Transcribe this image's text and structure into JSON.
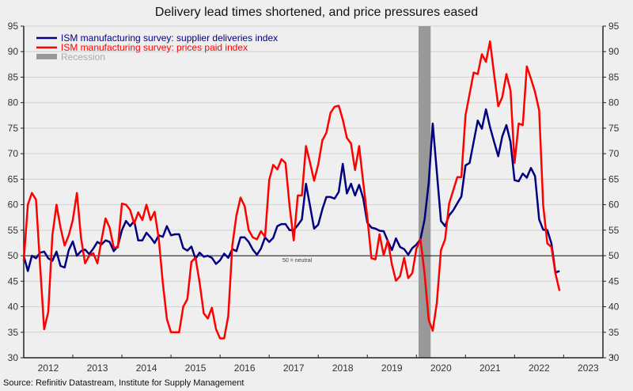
{
  "chart_data": {
    "type": "line",
    "title": "Delivery lead times shortened, and price pressures eased",
    "source": "Source: Refinitiv Datastream, Institute for Supply Management",
    "x_start": "2012-01",
    "frequency": "monthly",
    "xlim": [
      2012,
      2023.8
    ],
    "ylim": [
      30,
      95
    ],
    "y_ticks": [
      "30",
      "35",
      "40",
      "45",
      "50",
      "55",
      "60",
      "65",
      "70",
      "75",
      "80",
      "85",
      "90",
      "95"
    ],
    "x_tick_labels": [
      "2012",
      "2013",
      "2014",
      "2015",
      "2016",
      "2017",
      "2018",
      "2019",
      "2020",
      "2021",
      "2022",
      "2023"
    ],
    "grid": true,
    "dual_axis_same_scale": true,
    "legend_position": "top-left",
    "reference_line": {
      "value": 50,
      "label": "50 = neutral"
    },
    "recession": {
      "label": "Recession",
      "start": "2020-02",
      "end": "2020-04",
      "color": "#999999"
    },
    "series": [
      {
        "name": "ISM manufacturing survey: supplier deliveries index",
        "color": "#000080",
        "values": [
          50,
          47,
          50,
          49.5,
          50.6,
          50.8,
          49.5,
          49,
          50.8,
          48,
          47.7,
          51.1,
          52.8,
          50,
          50.9,
          51.2,
          50.3,
          51.4,
          52.7,
          52.2,
          53,
          52.7,
          50.9,
          51.9,
          55,
          56.8,
          55.8,
          56.8,
          53,
          53,
          54.5,
          53.6,
          52.5,
          54,
          53.7,
          55.8,
          54,
          54.2,
          54.2,
          51.5,
          51,
          51.8,
          49.4,
          50.6,
          49.8,
          50,
          49.6,
          48.4,
          49.1,
          50.4,
          49.6,
          51.3,
          50.9,
          53.6,
          53.6,
          52.7,
          51.2,
          50.2,
          51.4,
          53.6,
          52.7,
          53.5,
          55.8,
          56.2,
          56.2,
          55,
          55,
          56,
          57.1,
          64.1,
          59.7,
          55.3,
          56.1,
          59.1,
          61.5,
          61.5,
          61.2,
          62.5,
          68,
          62.2,
          64.1,
          61.8,
          63.9,
          61.2,
          56.5,
          55.5,
          55.3,
          54.9,
          54.8,
          52.9,
          51.1,
          53.4,
          51.7,
          51.3,
          50.2,
          51.5,
          52.2,
          53.2,
          57.1,
          64.3,
          75.9,
          66.4,
          56.8,
          55.8,
          57.9,
          58.9,
          60.3,
          61.6,
          67.7,
          68.2,
          72.3,
          76.5,
          74.9,
          78.7,
          75.2,
          72.3,
          69.5,
          73.4,
          75.6,
          72.3,
          64.8,
          64.6,
          66.1,
          65.3,
          67.2,
          65.6,
          57.1,
          55.1,
          55,
          52.4,
          46.7,
          47
        ]
      },
      {
        "name": "ISM manufacturing survey: prices paid index",
        "color": "#ff0000",
        "values": [
          49,
          60,
          62.3,
          61,
          48,
          35.6,
          39,
          54,
          60,
          55.5,
          52,
          54,
          57,
          62.3,
          53.5,
          48.5,
          50,
          50.5,
          48.5,
          53,
          57.3,
          55.5,
          51.6,
          51.6,
          60.2,
          60,
          59,
          56.3,
          58.5,
          57,
          60,
          57,
          58.6,
          53.4,
          44.6,
          37.6,
          35,
          35,
          35,
          40,
          41.5,
          48.8,
          49.6,
          44.7,
          38.7,
          37.7,
          39.8,
          35.6,
          33.8,
          33.8,
          38.2,
          52,
          57.9,
          61.4,
          59.7,
          55,
          53.6,
          53.2,
          54.8,
          53.7,
          64.8,
          67.8,
          66.9,
          68.9,
          68.2,
          59.7,
          53,
          61.8,
          61.8,
          71.5,
          68.2,
          64.7,
          67.9,
          72.6,
          74.1,
          78,
          79.2,
          79.4,
          76.7,
          73.1,
          72,
          66.8,
          71.5,
          64.3,
          57.6,
          49.5,
          49.3,
          54.2,
          50.1,
          53,
          48.3,
          45.1,
          46,
          49.6,
          45.6,
          46.6,
          51.4,
          53.2,
          46.5,
          37.4,
          35.3,
          40.8,
          51.1,
          53.2,
          60.2,
          62.8,
          65.4,
          65.4,
          77.5,
          81.7,
          85.9,
          85.6,
          89.5,
          88,
          92,
          85.5,
          79.3,
          81.1,
          85.6,
          82.4,
          68.2,
          75.9,
          75.6,
          87.1,
          84.7,
          82.1,
          78.5,
          59.9,
          52.4,
          51.7,
          46.5,
          43.1
        ]
      }
    ]
  }
}
